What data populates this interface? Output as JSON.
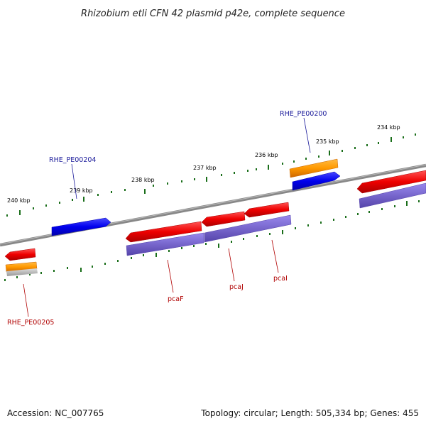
{
  "title": "Rhizobium etli CFN 42 plasmid p42e, complete sequence",
  "ticks": {
    "labels": [
      "240 kbp",
      "239 kbp",
      "238 kbp",
      "237 kbp",
      "236 kbp",
      "235 kbp",
      "234 kbp"
    ]
  },
  "gene_labels": {
    "RHE_PE00204": "RHE_PE00204",
    "RHE_PE00200": "RHE_PE00200",
    "RHE_PE00205": "RHE_PE00205",
    "pcaF": "pcaF",
    "pcaJ": "pcaJ",
    "pcaI": "pcaI"
  },
  "colors": {
    "backbone": "#808080",
    "forward_gene": "#0000ee",
    "reverse_gene": "#ee0000",
    "orange_feature": "#ff9900",
    "purple_feature": "#7766cc",
    "tick": "#1a6e1a",
    "label_blue": "#1a1a9a",
    "label_red": "#b00000"
  },
  "footer": {
    "accession": "Accession: NC_007765",
    "topology": "Topology: circular; Length: 505,334 bp; Genes: 455"
  }
}
